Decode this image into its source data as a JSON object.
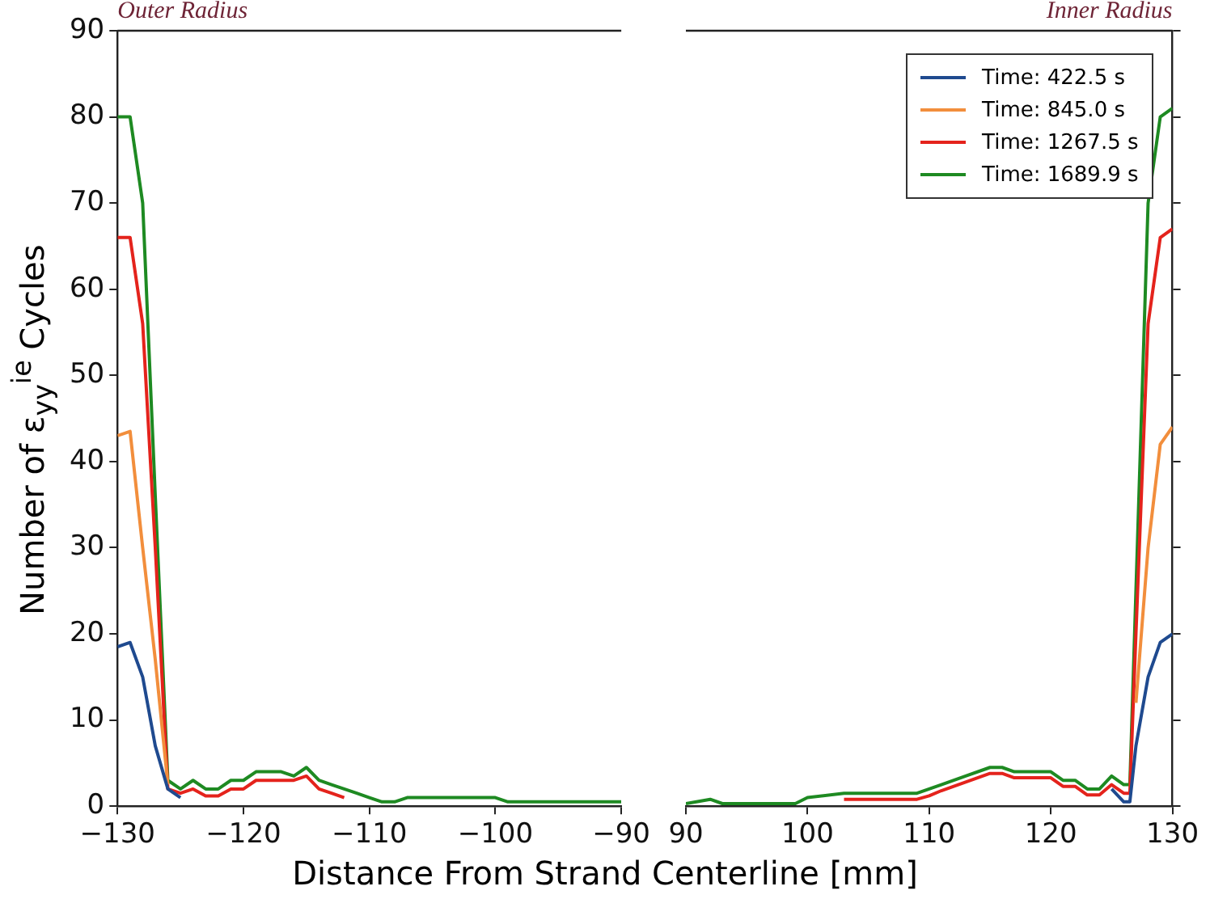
{
  "chart_data": [
    {
      "type": "line",
      "xlabel": "Distance From Strand Centerline [mm]",
      "ylabel": "Number of ε$_{yy}$$^{ie}$ Cycles",
      "annotations": [
        "Outer Radius"
      ],
      "xlim": [
        -130,
        -90
      ],
      "xticks": [
        -130,
        -120,
        -110,
        -100,
        -90
      ],
      "ylim": [
        0,
        90
      ],
      "yticks": [
        0,
        10,
        20,
        30,
        40,
        50,
        60,
        70,
        80,
        90
      ],
      "grid": false,
      "legend": false,
      "x": [
        -130,
        -129,
        -128,
        -127,
        -126,
        -125,
        -124,
        -123,
        -122,
        -121,
        -120,
        -119,
        -118,
        -117,
        -116,
        -115,
        -114,
        -113,
        -112,
        -111,
        -110,
        -109,
        -108,
        -107,
        -100,
        -99,
        -90
      ],
      "series": [
        {
          "color": "#1f4a8f",
          "values": [
            18.5,
            19,
            15,
            7,
            2,
            1,
            null,
            null,
            null,
            null,
            null,
            null,
            null,
            null,
            null,
            null,
            null,
            null,
            null,
            null,
            null,
            null,
            null,
            null,
            null,
            null,
            null
          ]
        },
        {
          "color": "#f28e3c",
          "values": [
            43,
            43.5,
            30,
            17,
            2.5,
            null,
            null,
            null,
            null,
            null,
            null,
            null,
            null,
            null,
            null,
            null,
            null,
            null,
            null,
            null,
            null,
            null,
            null,
            null,
            null,
            null,
            null
          ]
        },
        {
          "color": "#e4231c",
          "values": [
            66,
            66,
            56,
            30,
            2,
            1.5,
            2,
            1.2,
            1.2,
            2,
            2,
            3,
            3,
            3,
            3,
            3.5,
            2,
            1.5,
            1,
            null,
            null,
            null,
            null,
            null,
            null,
            null,
            null
          ]
        },
        {
          "color": "#1e8a22",
          "values": [
            80,
            80,
            70,
            36,
            3,
            2,
            3,
            2,
            2,
            3,
            3,
            4,
            4,
            4,
            3.5,
            4.5,
            3,
            2.5,
            2,
            1.5,
            1,
            0.5,
            0.5,
            1,
            1,
            0.5,
            0.5
          ]
        }
      ]
    },
    {
      "type": "line",
      "annotations": [
        "Inner Radius"
      ],
      "xlim": [
        90,
        130
      ],
      "xticks": [
        90,
        100,
        110,
        120,
        130
      ],
      "ylim": [
        0,
        90
      ],
      "yticks": [
        0,
        10,
        20,
        30,
        40,
        50,
        60,
        70,
        80,
        90
      ],
      "tick_labels": "x",
      "grid": false,
      "legend": "top right",
      "x": [
        90,
        92,
        93,
        95,
        97,
        99,
        100,
        103,
        109,
        110,
        111,
        113,
        115,
        116,
        117,
        120,
        121,
        122,
        123,
        124,
        125,
        126,
        126.5,
        127,
        128,
        129,
        130
      ],
      "series": [
        {
          "name": "Time: 422.5 s",
          "color": "#1f4a8f",
          "values": [
            null,
            null,
            null,
            null,
            null,
            null,
            null,
            null,
            null,
            null,
            null,
            null,
            null,
            null,
            null,
            null,
            null,
            null,
            null,
            null,
            2,
            0.5,
            0.5,
            7,
            15,
            19,
            20
          ]
        },
        {
          "name": "Time: 845.0 s",
          "color": "#f28e3c",
          "values": [
            null,
            null,
            null,
            null,
            null,
            null,
            null,
            null,
            null,
            null,
            null,
            null,
            null,
            null,
            null,
            null,
            null,
            null,
            null,
            null,
            null,
            null,
            null,
            12,
            30,
            42,
            44
          ]
        },
        {
          "name": "Time: 1267.5 s",
          "color": "#e4231c",
          "values": [
            null,
            null,
            null,
            null,
            null,
            null,
            null,
            0.8,
            0.8,
            1.2,
            1.8,
            2.8,
            3.8,
            3.8,
            3.3,
            3.3,
            2.3,
            2.3,
            1.3,
            1.3,
            2.5,
            1.5,
            1.5,
            20,
            56,
            66,
            67
          ]
        },
        {
          "name": "Time: 1689.9 s",
          "color": "#1e8a22",
          "values": [
            0.3,
            0.8,
            0.3,
            0.3,
            0.3,
            0.3,
            1,
            1.5,
            1.5,
            2,
            2.5,
            3.5,
            4.5,
            4.5,
            4,
            4,
            3,
            3,
            2,
            2,
            3.5,
            2.5,
            2.5,
            25,
            70,
            80,
            81
          ]
        }
      ]
    }
  ]
}
